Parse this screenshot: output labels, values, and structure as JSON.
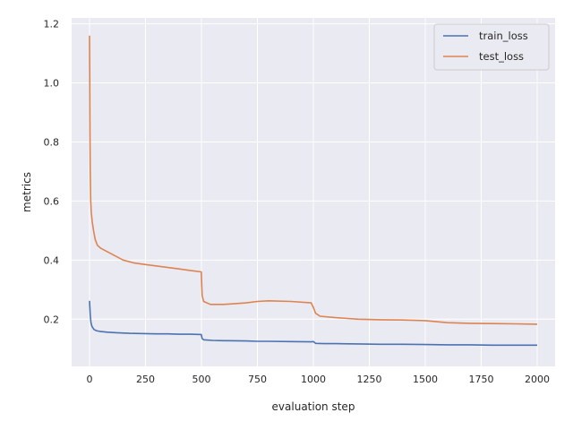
{
  "chart_data": {
    "type": "line",
    "xlabel": "evaluation step",
    "ylabel": "metrics",
    "xlim": [
      -80,
      2080
    ],
    "ylim": [
      0.04,
      1.22
    ],
    "xticks": [
      0,
      250,
      500,
      750,
      1000,
      1250,
      1500,
      1750,
      2000
    ],
    "yticks": [
      0.2,
      0.4,
      0.6,
      0.8,
      1.0,
      1.2
    ],
    "ytick_labels": [
      "0.2",
      "0.4",
      "0.6",
      "0.8",
      "1.0",
      "1.2"
    ],
    "grid": true,
    "legend_position": "top-right",
    "series": [
      {
        "name": "train_loss",
        "color": "#4c72b0",
        "x": [
          0,
          3,
          6,
          10,
          15,
          20,
          30,
          50,
          80,
          120,
          180,
          250,
          300,
          350,
          400,
          450,
          499,
          503,
          510,
          550,
          600,
          700,
          750,
          800,
          900,
          990,
          1000,
          1010,
          1050,
          1100,
          1200,
          1300,
          1400,
          1500,
          1600,
          1700,
          1800,
          1900,
          2000
        ],
        "y": [
          0.262,
          0.215,
          0.19,
          0.177,
          0.17,
          0.165,
          0.161,
          0.158,
          0.156,
          0.154,
          0.152,
          0.151,
          0.15,
          0.15,
          0.149,
          0.149,
          0.148,
          0.134,
          0.13,
          0.128,
          0.127,
          0.126,
          0.125,
          0.125,
          0.124,
          0.123,
          0.124,
          0.118,
          0.117,
          0.117,
          0.116,
          0.115,
          0.115,
          0.114,
          0.113,
          0.113,
          0.112,
          0.112,
          0.112
        ]
      },
      {
        "name": "test_loss",
        "color": "#dd8452",
        "x": [
          0,
          1,
          2,
          3,
          5,
          8,
          12,
          18,
          25,
          35,
          50,
          75,
          100,
          150,
          200,
          250,
          300,
          350,
          400,
          450,
          499,
          503,
          510,
          540,
          600,
          700,
          750,
          800,
          900,
          990,
          1000,
          1010,
          1030,
          1100,
          1200,
          1300,
          1400,
          1500,
          1600,
          1700,
          1800,
          1900,
          2000
        ],
        "y": [
          1.16,
          1.0,
          0.84,
          0.7,
          0.6,
          0.56,
          0.53,
          0.5,
          0.47,
          0.45,
          0.44,
          0.43,
          0.42,
          0.4,
          0.39,
          0.385,
          0.38,
          0.375,
          0.37,
          0.365,
          0.36,
          0.28,
          0.26,
          0.25,
          0.25,
          0.255,
          0.26,
          0.262,
          0.26,
          0.255,
          0.24,
          0.22,
          0.21,
          0.205,
          0.2,
          0.198,
          0.197,
          0.195,
          0.188,
          0.186,
          0.185,
          0.184,
          0.183
        ]
      }
    ]
  }
}
